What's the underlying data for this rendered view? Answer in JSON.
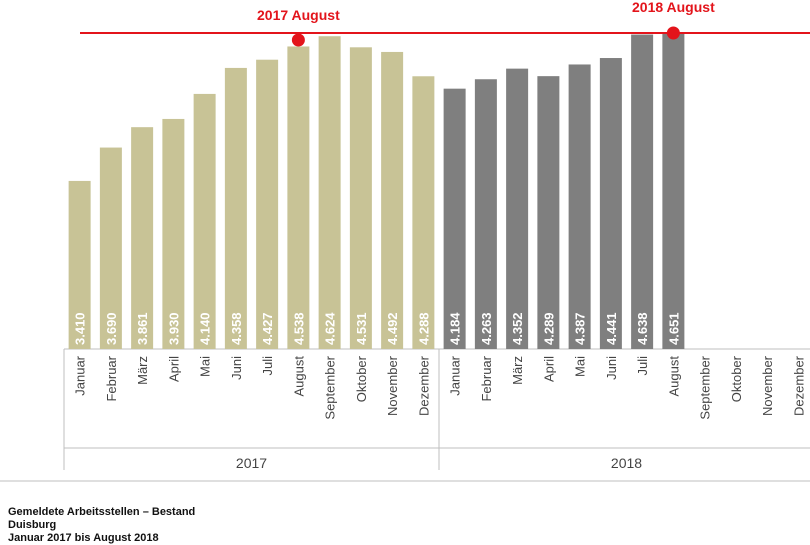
{
  "chart_data": {
    "type": "bar",
    "categories": [
      "Januar",
      "Februar",
      "März",
      "April",
      "Mai",
      "Juni",
      "Juli",
      "August",
      "September",
      "Oktober",
      "November",
      "Dezember",
      "Januar",
      "Februar",
      "März",
      "April",
      "Mai",
      "Juni",
      "Juli",
      "August",
      "September",
      "Oktober",
      "November",
      "Dezember"
    ],
    "values": [
      3410,
      3690,
      3861,
      3930,
      4140,
      4358,
      4427,
      4538,
      4624,
      4531,
      4492,
      4288,
      4184,
      4263,
      4352,
      4289,
      4387,
      4441,
      4638,
      4651,
      null,
      null,
      null,
      null
    ],
    "value_labels": [
      "3.410",
      "3.690",
      "3.861",
      "3.930",
      "4.140",
      "4.358",
      "4.427",
      "4.538",
      "4.624",
      "4.531",
      "4.492",
      "4.288",
      "4.184",
      "4.263",
      "4.352",
      "4.289",
      "4.387",
      "4.441",
      "4.638",
      "4.651",
      "",
      "",
      "",
      ""
    ],
    "groups": [
      {
        "label": "2017",
        "start": 0,
        "count": 12,
        "color": "#c8c396"
      },
      {
        "label": "2018",
        "start": 12,
        "count": 12,
        "color": "#7f7f7f"
      }
    ],
    "reference_line": {
      "value": 4651,
      "color": "#e3141b"
    },
    "annotations": [
      {
        "label": "2017 August",
        "index": 7
      },
      {
        "label": "2018 August",
        "index": 19
      }
    ],
    "ylim": [
      0,
      4651
    ],
    "grid": false,
    "legend": "none"
  },
  "footer": {
    "line1": "Gemeldete Arbeitsstellen – Bestand",
    "line2": "Duisburg",
    "line3": "Januar 2017 bis August 2018"
  }
}
